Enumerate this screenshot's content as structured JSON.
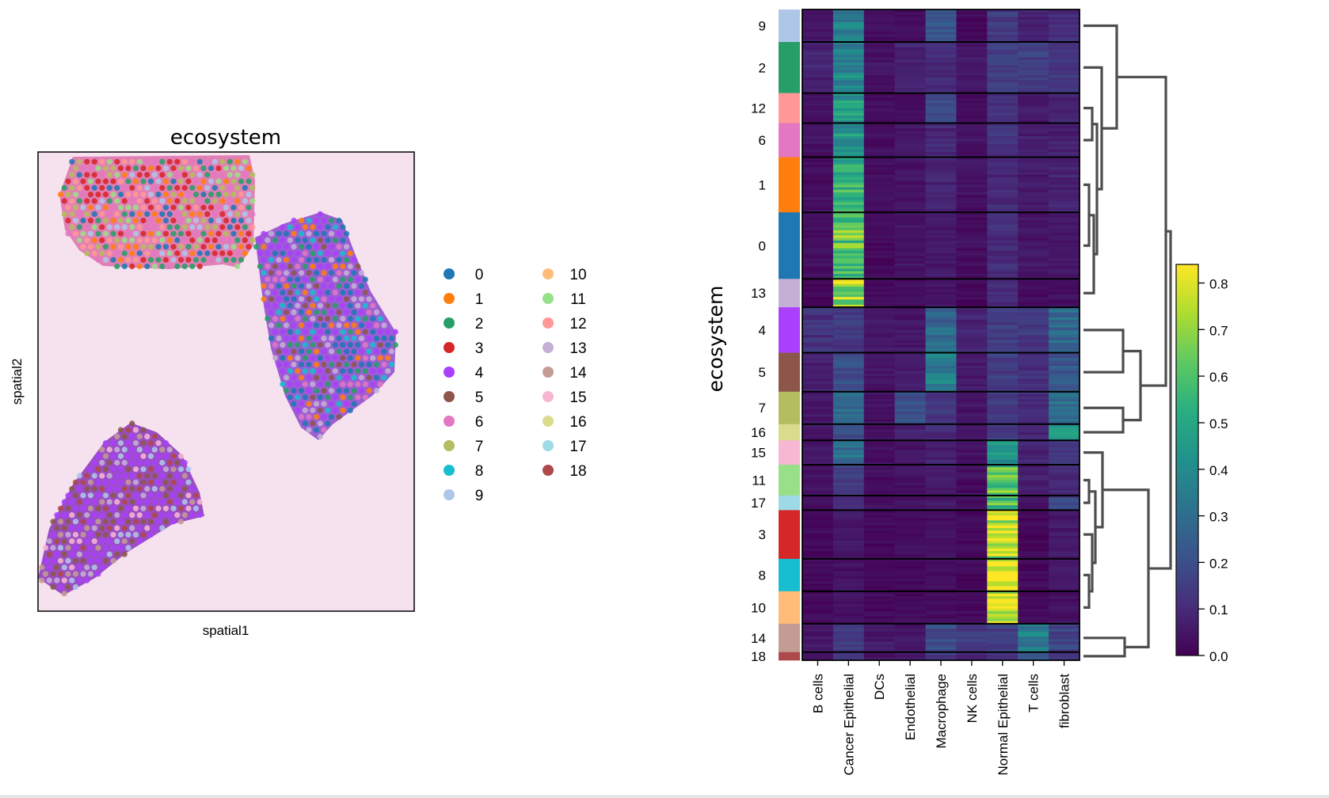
{
  "chart_data": [
    {
      "type": "scatter",
      "title": "ecosystem",
      "xlabel": "spatial1",
      "ylabel": "spatial2",
      "background": "H&E tissue image (pink/purple) with colored Visium spots",
      "legend": {
        "placement": "right",
        "entries": [
          "0",
          "1",
          "2",
          "3",
          "4",
          "5",
          "6",
          "7",
          "8",
          "9",
          "10",
          "11",
          "12",
          "13",
          "14",
          "15",
          "16",
          "17",
          "18"
        ]
      }
    },
    {
      "type": "heatmap",
      "ylabel": "ecosystem",
      "columns": [
        "B cells",
        "Cancer Epithelial",
        "DCs",
        "Endothelial",
        "Macrophage",
        "NK cells",
        "Normal Epithelial",
        "T cells",
        "fibroblast"
      ],
      "row_order": [
        "9",
        "2",
        "12",
        "6",
        "1",
        "0",
        "13",
        "4",
        "5",
        "7",
        "16",
        "15",
        "11",
        "17",
        "3",
        "8",
        "10",
        "14",
        "18"
      ],
      "group_sizes": [
        40,
        63,
        37,
        42,
        68,
        82,
        35,
        56,
        48,
        40,
        20,
        30,
        38,
        18,
        60,
        40,
        40,
        35,
        10
      ],
      "values": [
        [
          0.05,
          0.35,
          0.03,
          0.03,
          0.22,
          0.02,
          0.14,
          0.08,
          0.1
        ],
        [
          0.08,
          0.38,
          0.04,
          0.08,
          0.1,
          0.05,
          0.15,
          0.15,
          0.12
        ],
        [
          0.04,
          0.45,
          0.03,
          0.03,
          0.18,
          0.02,
          0.12,
          0.06,
          0.08
        ],
        [
          0.04,
          0.45,
          0.03,
          0.06,
          0.09,
          0.04,
          0.12,
          0.07,
          0.08
        ],
        [
          0.03,
          0.55,
          0.03,
          0.04,
          0.08,
          0.04,
          0.1,
          0.07,
          0.08
        ],
        [
          0.03,
          0.62,
          0.02,
          0.04,
          0.06,
          0.03,
          0.1,
          0.05,
          0.05
        ],
        [
          0.02,
          0.72,
          0.02,
          0.03,
          0.05,
          0.02,
          0.1,
          0.03,
          0.04
        ],
        [
          0.12,
          0.14,
          0.05,
          0.05,
          0.28,
          0.08,
          0.15,
          0.14,
          0.28
        ],
        [
          0.07,
          0.2,
          0.04,
          0.07,
          0.36,
          0.06,
          0.15,
          0.11,
          0.22
        ],
        [
          0.06,
          0.3,
          0.04,
          0.2,
          0.12,
          0.05,
          0.15,
          0.1,
          0.3
        ],
        [
          0.06,
          0.22,
          0.04,
          0.08,
          0.1,
          0.05,
          0.14,
          0.08,
          0.45
        ],
        [
          0.05,
          0.3,
          0.03,
          0.05,
          0.07,
          0.04,
          0.45,
          0.08,
          0.14
        ],
        [
          0.04,
          0.16,
          0.03,
          0.04,
          0.06,
          0.03,
          0.62,
          0.06,
          0.1
        ],
        [
          0.03,
          0.1,
          0.03,
          0.04,
          0.05,
          0.03,
          0.62,
          0.04,
          0.18
        ],
        [
          0.02,
          0.05,
          0.02,
          0.03,
          0.04,
          0.02,
          0.75,
          0.02,
          0.06
        ],
        [
          0.02,
          0.04,
          0.02,
          0.02,
          0.03,
          0.02,
          0.82,
          0.02,
          0.05
        ],
        [
          0.02,
          0.04,
          0.02,
          0.02,
          0.03,
          0.02,
          0.8,
          0.02,
          0.04
        ],
        [
          0.05,
          0.15,
          0.06,
          0.05,
          0.2,
          0.14,
          0.15,
          0.36,
          0.17
        ],
        [
          0.05,
          0.12,
          0.04,
          0.05,
          0.14,
          0.08,
          0.12,
          0.2,
          0.14
        ]
      ],
      "colorbar": {
        "range": [
          0.0,
          0.84
        ],
        "ticks": [
          "0.0",
          "0.1",
          "0.2",
          "0.3",
          "0.4",
          "0.5",
          "0.6",
          "0.7",
          "0.8"
        ],
        "colormap": "viridis"
      },
      "dendrogram": "right",
      "group_colors": {
        "0": "#1f77b4",
        "1": "#ff7f0e",
        "2": "#279e68",
        "3": "#d62728",
        "4": "#aa40fc",
        "5": "#8c564b",
        "6": "#e377c2",
        "7": "#b5bd61",
        "8": "#17becf",
        "9": "#aec7e8",
        "10": "#ffbb78",
        "11": "#98df8a",
        "12": "#ff9896",
        "13": "#c5b0d5",
        "14": "#c49c94",
        "15": "#f7b6d2",
        "16": "#dbdb8d",
        "17": "#9edae5",
        "18": "#ad494a"
      }
    }
  ]
}
